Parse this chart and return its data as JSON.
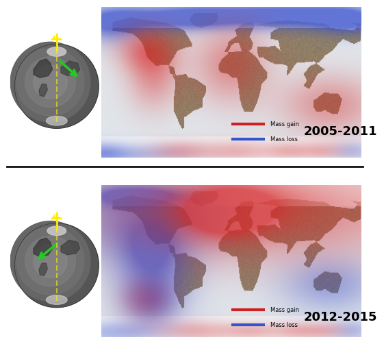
{
  "panel1_year": "2005-2011",
  "panel2_year": "2012-2015",
  "legend_gain": "Mass gain",
  "legend_loss": "Mass loss",
  "color_gain": "#cc2222",
  "color_loss": "#3355cc",
  "bg_color": "#ffffff",
  "year_fontsize": 13,
  "legend_fontsize": 6,
  "map_aspect": 2.0,
  "panel1_overlays": {
    "blue": [
      [
        0.04,
        0.92,
        0.12,
        0.07,
        0.6
      ],
      [
        0.16,
        0.93,
        0.14,
        0.06,
        0.55
      ],
      [
        0.29,
        0.93,
        0.1,
        0.06,
        0.5
      ],
      [
        0.38,
        0.93,
        0.08,
        0.05,
        0.5
      ],
      [
        0.5,
        0.94,
        0.12,
        0.06,
        0.55
      ],
      [
        0.63,
        0.94,
        0.16,
        0.06,
        0.6
      ],
      [
        0.76,
        0.94,
        0.14,
        0.06,
        0.55
      ],
      [
        0.88,
        0.94,
        0.12,
        0.06,
        0.5
      ],
      [
        0.97,
        0.93,
        0.08,
        0.06,
        0.5
      ],
      [
        0.04,
        0.85,
        0.08,
        0.08,
        0.45
      ],
      [
        0.95,
        0.88,
        0.08,
        0.06,
        0.4
      ],
      [
        0.1,
        0.02,
        0.16,
        0.05,
        0.45
      ],
      [
        0.0,
        0.03,
        0.06,
        0.05,
        0.4
      ],
      [
        0.97,
        0.04,
        0.06,
        0.05,
        0.4
      ]
    ],
    "red": [
      [
        0.17,
        0.72,
        0.08,
        0.1,
        0.6
      ],
      [
        0.2,
        0.55,
        0.07,
        0.16,
        0.55
      ],
      [
        0.5,
        0.62,
        0.1,
        0.18,
        0.6
      ],
      [
        0.88,
        0.35,
        0.13,
        0.14,
        0.55
      ],
      [
        0.3,
        0.04,
        0.08,
        0.05,
        0.4
      ],
      [
        0.52,
        0.04,
        0.1,
        0.05,
        0.4
      ],
      [
        0.72,
        0.04,
        0.06,
        0.04,
        0.35
      ],
      [
        0.85,
        0.04,
        0.06,
        0.04,
        0.35
      ]
    ]
  },
  "panel2_overlays": {
    "blue": [
      [
        0.05,
        0.93,
        0.08,
        0.05,
        0.4
      ],
      [
        0.14,
        0.93,
        0.1,
        0.05,
        0.4
      ],
      [
        0.25,
        0.93,
        0.08,
        0.04,
        0.35
      ],
      [
        0.14,
        0.82,
        0.22,
        0.2,
        0.65
      ],
      [
        0.19,
        0.6,
        0.1,
        0.14,
        0.55
      ],
      [
        0.2,
        0.38,
        0.1,
        0.18,
        0.6
      ],
      [
        0.19,
        0.22,
        0.07,
        0.1,
        0.5
      ],
      [
        0.88,
        0.35,
        0.13,
        0.13,
        0.55
      ],
      [
        0.05,
        0.03,
        0.12,
        0.05,
        0.45
      ],
      [
        0.97,
        0.04,
        0.06,
        0.05,
        0.4
      ]
    ],
    "red": [
      [
        0.6,
        0.82,
        0.44,
        0.22,
        0.72
      ],
      [
        0.5,
        0.88,
        0.14,
        0.1,
        0.6
      ],
      [
        0.47,
        0.78,
        0.1,
        0.1,
        0.55
      ],
      [
        0.17,
        0.25,
        0.07,
        0.1,
        0.45
      ],
      [
        0.36,
        0.04,
        0.1,
        0.05,
        0.4
      ],
      [
        0.58,
        0.04,
        0.08,
        0.04,
        0.38
      ],
      [
        0.75,
        0.04,
        0.06,
        0.04,
        0.35
      ],
      [
        0.86,
        0.04,
        0.06,
        0.04,
        0.35
      ]
    ]
  }
}
